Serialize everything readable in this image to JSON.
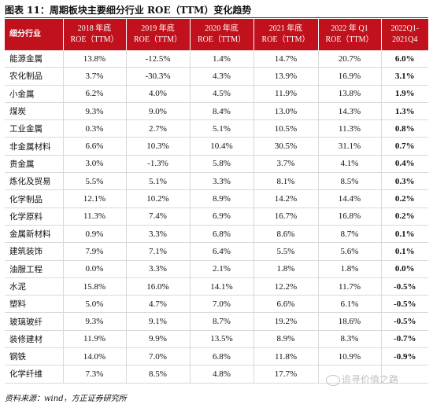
{
  "title": "图表 11：周期板块主要细分行业 ROE（TTM）变化趋势",
  "header": {
    "industry": "细分行业",
    "columns": [
      [
        "2018 年底",
        "ROE（TTM）"
      ],
      [
        "2019 年底",
        "ROE（TTM）"
      ],
      [
        "2020 年底",
        "ROE（TTM）"
      ],
      [
        "2021 年底",
        "ROE（TTM）"
      ],
      [
        "2022 年 Q1",
        "ROE（TTM）"
      ],
      [
        "2022Q1-",
        "2021Q4"
      ]
    ]
  },
  "rows": [
    [
      "能源金属",
      "13.8%",
      "-12.5%",
      "1.4%",
      "14.7%",
      "20.7%",
      "6.0%"
    ],
    [
      "农化制品",
      "3.7%",
      "-30.3%",
      "4.3%",
      "13.9%",
      "16.9%",
      "3.1%"
    ],
    [
      "小金属",
      "6.2%",
      "4.0%",
      "4.5%",
      "11.9%",
      "13.8%",
      "1.9%"
    ],
    [
      "煤炭",
      "9.3%",
      "9.0%",
      "8.4%",
      "13.0%",
      "14.3%",
      "1.3%"
    ],
    [
      "工业金属",
      "0.3%",
      "2.7%",
      "5.1%",
      "10.5%",
      "11.3%",
      "0.8%"
    ],
    [
      "非金属材料",
      "6.6%",
      "10.3%",
      "10.4%",
      "30.5%",
      "31.1%",
      "0.7%"
    ],
    [
      "贵金属",
      "3.0%",
      "-1.3%",
      "5.8%",
      "3.7%",
      "4.1%",
      "0.4%"
    ],
    [
      "炼化及贸易",
      "5.5%",
      "5.1%",
      "3.3%",
      "8.1%",
      "8.5%",
      "0.3%"
    ],
    [
      "化学制品",
      "12.1%",
      "10.2%",
      "8.9%",
      "14.2%",
      "14.4%",
      "0.2%"
    ],
    [
      "化学原料",
      "11.3%",
      "7.4%",
      "6.9%",
      "16.7%",
      "16.8%",
      "0.2%"
    ],
    [
      "金属新材料",
      "0.9%",
      "3.3%",
      "6.8%",
      "8.6%",
      "8.7%",
      "0.1%"
    ],
    [
      "建筑装饰",
      "7.9%",
      "7.1%",
      "6.4%",
      "5.5%",
      "5.6%",
      "0.1%"
    ],
    [
      "油服工程",
      "0.0%",
      "3.3%",
      "2.1%",
      "1.8%",
      "1.8%",
      "0.0%"
    ],
    [
      "水泥",
      "15.8%",
      "16.0%",
      "14.1%",
      "12.2%",
      "11.7%",
      "-0.5%"
    ],
    [
      "塑料",
      "5.0%",
      "4.7%",
      "7.0%",
      "6.6%",
      "6.1%",
      "-0.5%"
    ],
    [
      "玻璃玻纤",
      "9.3%",
      "9.1%",
      "8.7%",
      "19.2%",
      "18.6%",
      "-0.5%"
    ],
    [
      "装修建材",
      "11.9%",
      "9.9%",
      "13.5%",
      "8.9%",
      "8.3%",
      "-0.7%"
    ],
    [
      "钢铁",
      "14.0%",
      "7.0%",
      "6.8%",
      "11.8%",
      "10.9%",
      "-0.9%"
    ],
    [
      "化学纤维",
      "7.3%",
      "8.5%",
      "4.8%",
      "17.7%",
      "",
      ""
    ]
  ],
  "source": "资料来源：wind，方正证券研究所",
  "watermark": "追寻价值之路",
  "colors": {
    "header_bg": "#c0111c",
    "header_text": "#ffffff",
    "grid": "#d9d9d9"
  }
}
